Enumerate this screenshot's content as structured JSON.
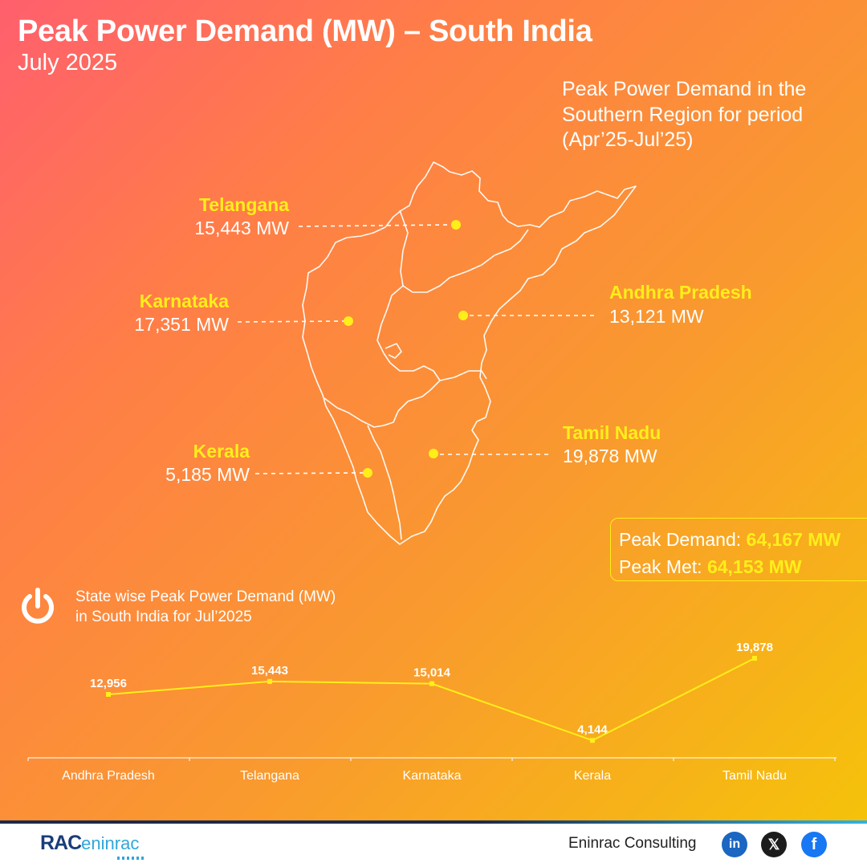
{
  "title": "Peak Power Demand (MW) – South India",
  "subtitle": "July 2025",
  "region_note": "Peak Power Demand in the Southern Region for period (Apr’25-Jul’25)",
  "map_states": [
    {
      "name": "Telangana",
      "value": "15,443 MW"
    },
    {
      "name": "Karnataka",
      "value": "17,351 MW"
    },
    {
      "name": "Andhra Pradesh",
      "value": "13,121 MW"
    },
    {
      "name": "Kerala",
      "value": "5,185 MW"
    },
    {
      "name": "Tamil Nadu",
      "value": "19,878 MW"
    }
  ],
  "summary": {
    "demand_label": "Peak Demand:",
    "demand_value": "64,167 MW",
    "met_label": "Peak Met:",
    "met_value": "64,153 MW"
  },
  "chart_caption_line1": "State wise Peak Power Demand (MW)",
  "chart_caption_line2": "in South India for Jul’2025",
  "chart_data": {
    "type": "line",
    "categories": [
      "Andhra Pradesh",
      "Telangana",
      "Karnataka",
      "Kerala",
      "Tamil Nadu"
    ],
    "values": [
      12956,
      15443,
      15014,
      4144,
      19878
    ],
    "value_labels": [
      "12,956",
      "15,443",
      "15,014",
      "4,144",
      "19,878"
    ],
    "color": "#ffee1a",
    "grid": false
  },
  "footer": {
    "logo_mark": "RAC",
    "logo_word": "eninrac",
    "company": "Eninrac Consulting",
    "social_icons": [
      "linkedin-icon",
      "x-icon",
      "facebook-icon"
    ],
    "linkedin": "in",
    "x": "𝕏",
    "facebook": "f"
  }
}
